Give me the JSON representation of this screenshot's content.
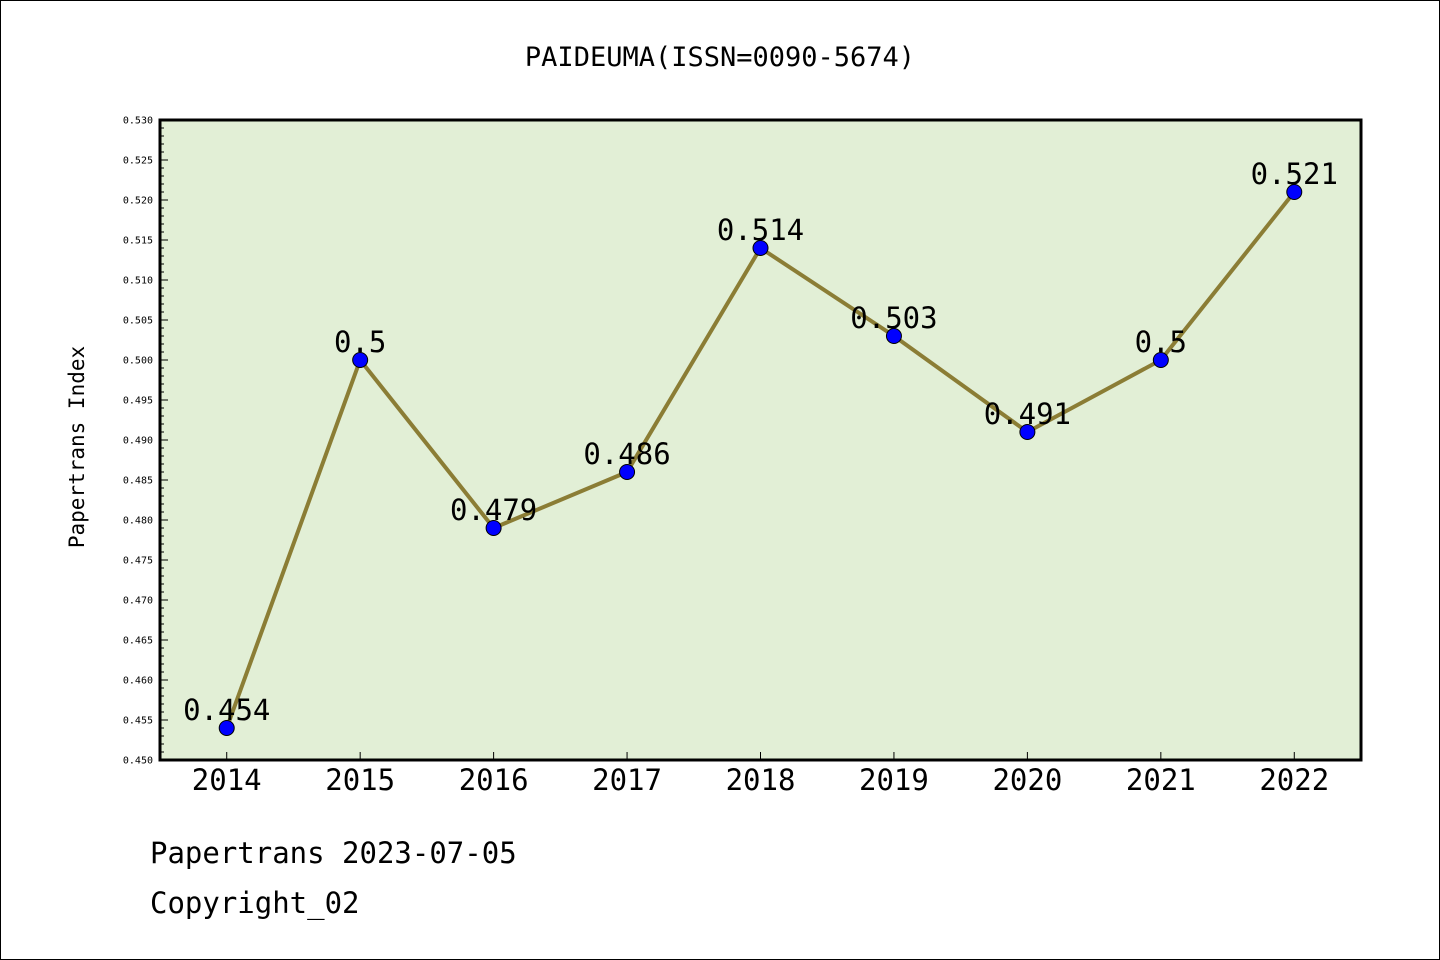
{
  "chart_data": {
    "type": "line",
    "title": "PAIDEUMA(ISSN=0090-5674)",
    "xlabel": "",
    "ylabel": "Papertrans Index",
    "categories": [
      "2014",
      "2015",
      "2016",
      "2017",
      "2018",
      "2019",
      "2020",
      "2021",
      "2022"
    ],
    "series": [
      {
        "values": [
          0.454,
          0.5,
          0.479,
          0.486,
          0.514,
          0.503,
          0.491,
          0.5,
          0.521
        ],
        "labels": [
          "0.454",
          "0.5",
          "0.479",
          "0.486",
          "0.514",
          "0.503",
          "0.491",
          "0.5",
          "0.521"
        ]
      }
    ],
    "ylim": [
      0.45,
      0.53
    ],
    "yticks": [
      "0.450",
      "0.455",
      "0.460",
      "0.465",
      "0.470",
      "0.475",
      "0.480",
      "0.485",
      "0.490",
      "0.495",
      "0.500",
      "0.505",
      "0.510",
      "0.515",
      "0.520",
      "0.525",
      "0.530"
    ],
    "grid": false,
    "colors": {
      "plot_background": "#e2efd6",
      "line": "#8b7d35",
      "marker": "#0000ff"
    }
  },
  "footer": {
    "line1": "Papertrans 2023-07-05",
    "line2": "Copyright_02"
  }
}
